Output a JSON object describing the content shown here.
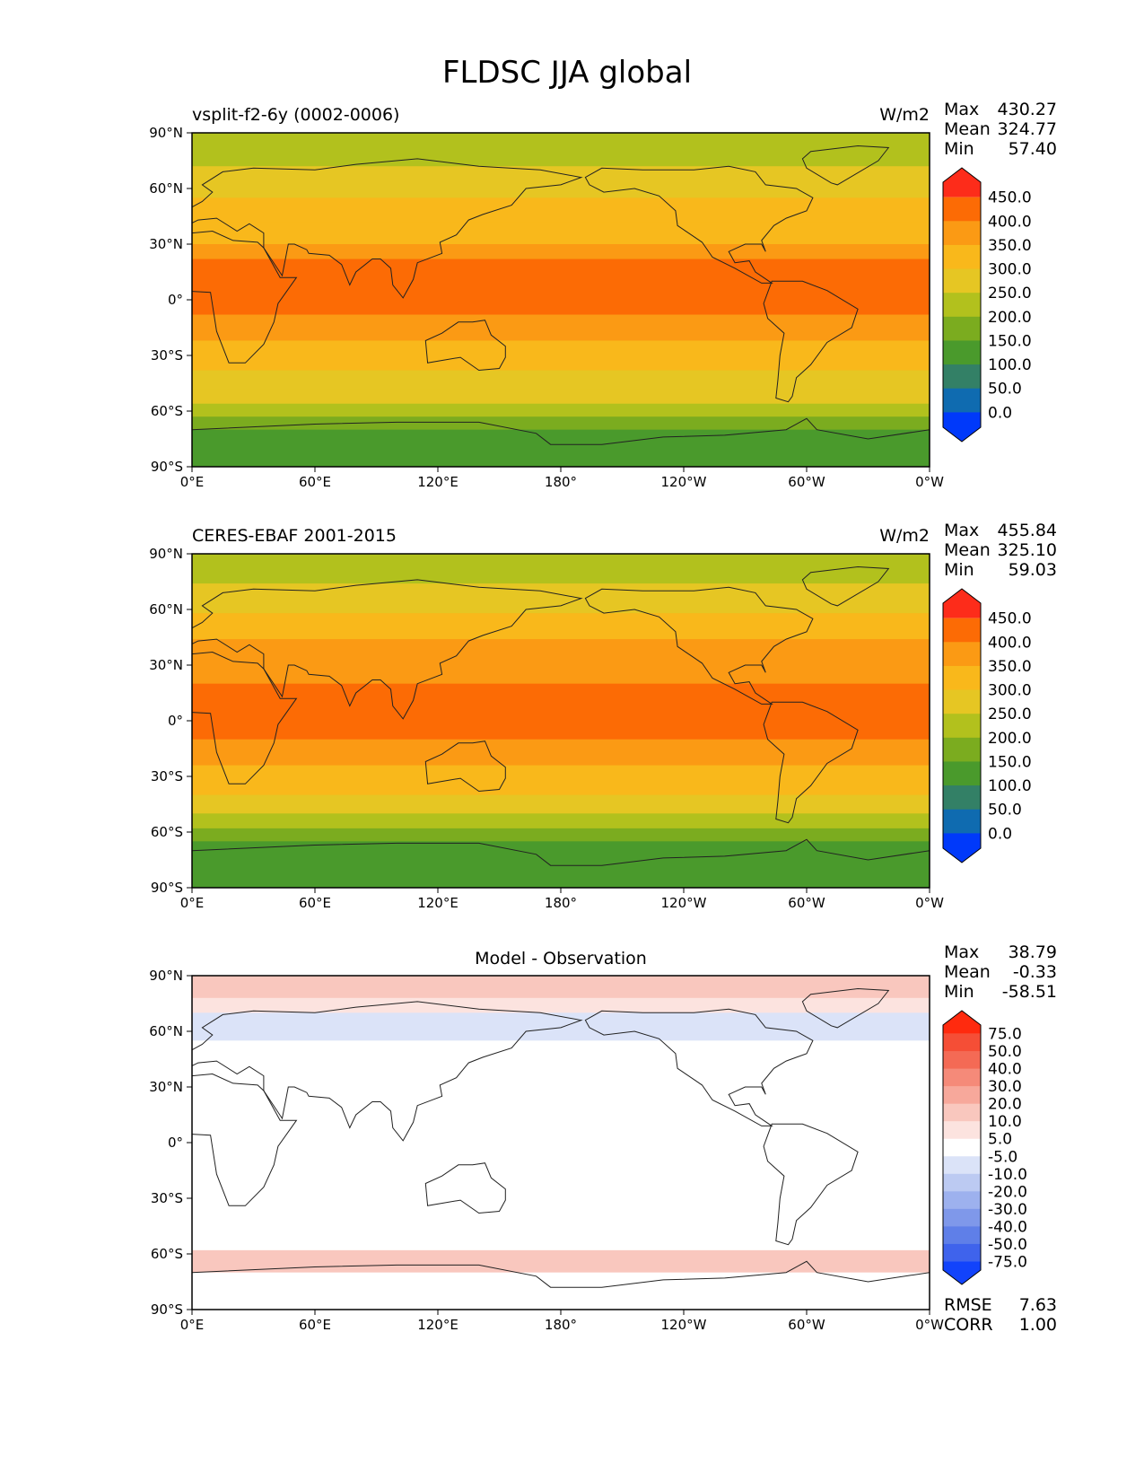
{
  "title": "FLDSC JJA global",
  "chart_data": [
    {
      "type": "heatmap",
      "panel": "test",
      "left_title": "vsplit-f2-6y (0002-0006)",
      "units": "W/m2",
      "stats": {
        "max_label": "Max",
        "max": "430.27",
        "mean_label": "Mean",
        "mean": "324.77",
        "min_label": "Min",
        "min": "57.40"
      },
      "colorbar": {
        "levels": [
          "450.0",
          "400.0",
          "350.0",
          "300.0",
          "250.0",
          "200.0",
          "150.0",
          "100.0",
          "50.0",
          "0.0"
        ],
        "colors": [
          "#fd2c1a",
          "#fc6b05",
          "#fb9a14",
          "#f9b81b",
          "#e6c623",
          "#b2c11d",
          "#7bac1f",
          "#4a9a2c",
          "#338066",
          "#0f6bb0",
          "#0039fa"
        ]
      },
      "x_ticks": [
        "0°E",
        "60°E",
        "120°E",
        "180°",
        "120°W",
        "60°W",
        "0°W"
      ],
      "y_ticks": [
        "90°N",
        "60°N",
        "30°N",
        "0°",
        "30°S",
        "60°S",
        "90°S"
      ],
      "lat_bands": [
        {
          "lat_from": 90,
          "lat_to": 72,
          "value": 220
        },
        {
          "lat_from": 72,
          "lat_to": 55,
          "value": 270
        },
        {
          "lat_from": 55,
          "lat_to": 42,
          "value": 300
        },
        {
          "lat_from": 42,
          "lat_to": 30,
          "value": 340
        },
        {
          "lat_from": 30,
          "lat_to": 22,
          "value": 370
        },
        {
          "lat_from": 22,
          "lat_to": -8,
          "value": 400
        },
        {
          "lat_from": -8,
          "lat_to": -22,
          "value": 370
        },
        {
          "lat_from": -22,
          "lat_to": -38,
          "value": 330
        },
        {
          "lat_from": -38,
          "lat_to": -48,
          "value": 290
        },
        {
          "lat_from": -48,
          "lat_to": -56,
          "value": 250
        },
        {
          "lat_from": -56,
          "lat_to": -63,
          "value": 200
        },
        {
          "lat_from": -63,
          "lat_to": -70,
          "value": 160
        },
        {
          "lat_from": -70,
          "lat_to": -90,
          "value": 120
        }
      ]
    },
    {
      "type": "heatmap",
      "panel": "reference",
      "left_title": "CERES-EBAF 2001-2015",
      "units": "W/m2",
      "stats": {
        "max_label": "Max",
        "max": "455.84",
        "mean_label": "Mean",
        "mean": "325.10",
        "min_label": "Min",
        "min": "59.03"
      },
      "colorbar": {
        "levels": [
          "450.0",
          "400.0",
          "350.0",
          "300.0",
          "250.0",
          "200.0",
          "150.0",
          "100.0",
          "50.0",
          "0.0"
        ],
        "colors": [
          "#fd2c1a",
          "#fc6b05",
          "#fb9a14",
          "#f9b81b",
          "#e6c623",
          "#b2c11d",
          "#7bac1f",
          "#4a9a2c",
          "#338066",
          "#0f6bb0",
          "#0039fa"
        ]
      },
      "x_ticks": [
        "0°E",
        "60°E",
        "120°E",
        "180°",
        "120°W",
        "60°W",
        "0°W"
      ],
      "y_ticks": [
        "90°N",
        "60°N",
        "30°N",
        "0°",
        "30°S",
        "60°S",
        "90°S"
      ],
      "lat_bands": [
        {
          "lat_from": 90,
          "lat_to": 74,
          "value": 220
        },
        {
          "lat_from": 74,
          "lat_to": 58,
          "value": 280
        },
        {
          "lat_from": 58,
          "lat_to": 44,
          "value": 320
        },
        {
          "lat_from": 44,
          "lat_to": 30,
          "value": 350
        },
        {
          "lat_from": 30,
          "lat_to": 20,
          "value": 375
        },
        {
          "lat_from": 20,
          "lat_to": -10,
          "value": 405
        },
        {
          "lat_from": -10,
          "lat_to": -24,
          "value": 370
        },
        {
          "lat_from": -24,
          "lat_to": -40,
          "value": 330
        },
        {
          "lat_from": -40,
          "lat_to": -50,
          "value": 280
        },
        {
          "lat_from": -50,
          "lat_to": -58,
          "value": 230
        },
        {
          "lat_from": -58,
          "lat_to": -65,
          "value": 180
        },
        {
          "lat_from": -65,
          "lat_to": -71,
          "value": 140
        },
        {
          "lat_from": -71,
          "lat_to": -90,
          "value": 110
        }
      ]
    },
    {
      "type": "heatmap",
      "panel": "difference",
      "center_title": "Model - Observation",
      "stats": {
        "max_label": "Max",
        "max": "38.79",
        "mean_label": "Mean",
        "mean": "-0.33",
        "min_label": "Min",
        "min": "-58.51",
        "rmse_label": "RMSE",
        "rmse": "7.63",
        "corr_label": "CORR",
        "corr": "1.00"
      },
      "colorbar": {
        "levels": [
          "75.0",
          "50.0",
          "40.0",
          "30.0",
          "20.0",
          "10.0",
          "5.0",
          "-5.0",
          "-10.0",
          "-20.0",
          "-30.0",
          "-40.0",
          "-50.0",
          "-75.0"
        ],
        "colors": [
          "#ff2a0e",
          "#f54e36",
          "#f46a55",
          "#f58a79",
          "#f7a89b",
          "#f9c7be",
          "#fce3df",
          "#ffffff",
          "#dbe3f8",
          "#bccaf2",
          "#9db1ee",
          "#7f98ea",
          "#5f7fe8",
          "#3f63ec",
          "#1243fb"
        ]
      },
      "x_ticks": [
        "0°E",
        "60°E",
        "120°E",
        "180°",
        "120°W",
        "60°W",
        "0°W"
      ],
      "y_ticks": [
        "90°N",
        "60°N",
        "30°N",
        "0°",
        "30°S",
        "60°S",
        "90°S"
      ],
      "lat_bands": [
        {
          "lat_from": 90,
          "lat_to": 78,
          "value": 12
        },
        {
          "lat_from": 78,
          "lat_to": 70,
          "value": 6
        },
        {
          "lat_from": 70,
          "lat_to": 55,
          "value": -6
        },
        {
          "lat_from": 55,
          "lat_to": -45,
          "value": 0
        },
        {
          "lat_from": -45,
          "lat_to": -52,
          "value": 4
        },
        {
          "lat_from": -52,
          "lat_to": -58,
          "value": 0
        },
        {
          "lat_from": -58,
          "lat_to": -70,
          "value": 12
        },
        {
          "lat_from": -70,
          "lat_to": -90,
          "value": 2
        }
      ]
    }
  ]
}
